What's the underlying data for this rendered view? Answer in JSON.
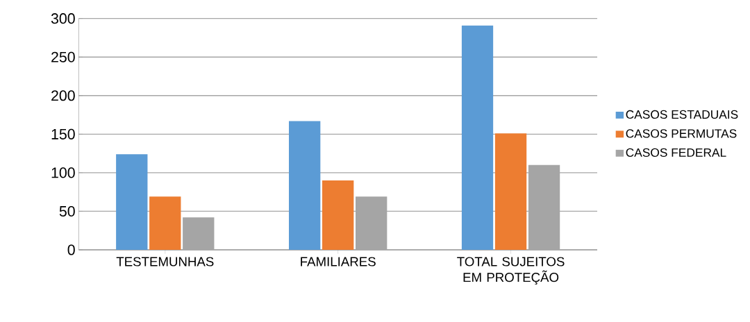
{
  "chart_data": {
    "type": "bar",
    "categories": [
      "TESTEMUNHAS",
      "FAMILIARES",
      "TOTAL SUJEITOS EM PROTEÇÃO"
    ],
    "series": [
      {
        "name": "CASOS ESTADUAIS",
        "color": "#5b9bd5",
        "values": [
          124,
          167,
          291
        ]
      },
      {
        "name": "CASOS PERMUTAS",
        "color": "#ed7d31",
        "values": [
          69,
          90,
          151
        ]
      },
      {
        "name": "CASOS FEDERAL",
        "color": "#a5a5a5",
        "values": [
          42,
          69,
          110
        ]
      }
    ],
    "ylim": [
      0,
      300
    ],
    "yticks": [
      0,
      50,
      100,
      150,
      200,
      250,
      300
    ],
    "grid": "y",
    "legend": "right"
  }
}
